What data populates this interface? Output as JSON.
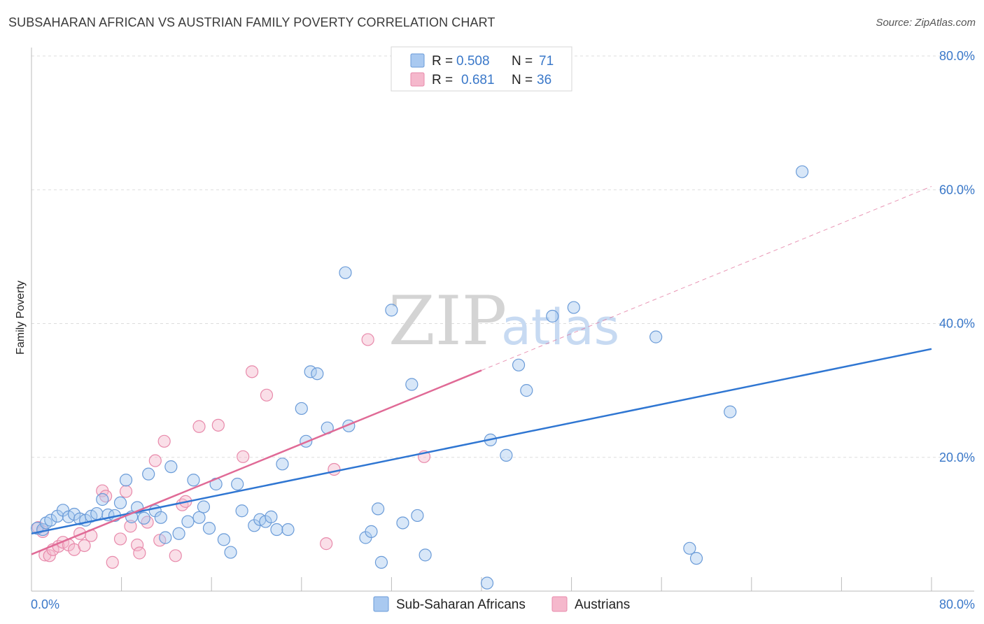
{
  "header": {
    "title": "SUBSAHARAN AFRICAN VS AUSTRIAN FAMILY POVERTY CORRELATION CHART",
    "source": "Source: ZipAtlas.com"
  },
  "watermark": {
    "zip": "ZIP",
    "atlas": "atlas"
  },
  "colors": {
    "blue": "#2f76d2",
    "blue_fill": "#a9c9f0",
    "blue_stroke": "#6a9bd8",
    "pink": "#e06a96",
    "pink_fill": "#f5b8cc",
    "pink_stroke": "#e88aab",
    "tick_label": "#3a78c9",
    "grid": "#dddddd"
  },
  "legend": {
    "entries": [
      {
        "r_label": "R =",
        "r_value": "0.508",
        "n_label": "N =",
        "n_value": "71"
      },
      {
        "r_label": "R =",
        "r_value": "0.681",
        "n_label": "N =",
        "n_value": "36"
      }
    ]
  },
  "chart_data": {
    "type": "scatter",
    "title": "SUBSAHARAN AFRICAN VS AUSTRIAN FAMILY POVERTY CORRELATION CHART",
    "xlabel": "",
    "ylabel": "Family Poverty",
    "xlim": [
      0,
      80
    ],
    "ylim": [
      0,
      80
    ],
    "x_tick_labels": [
      "0.0%",
      "80.0%"
    ],
    "y_ticks": [
      20,
      40,
      60,
      80
    ],
    "y_tick_labels": [
      "20.0%",
      "40.0%",
      "60.0%",
      "80.0%"
    ],
    "grid": true,
    "legend_position": "bottom",
    "series": [
      {
        "name": "Sub-Saharan Africans",
        "color": "#2f76d2",
        "points": [
          [
            0.5,
            9.4
          ],
          [
            1.0,
            9.2
          ],
          [
            1.3,
            10.2
          ],
          [
            1.7,
            10.6
          ],
          [
            2.3,
            11.2
          ],
          [
            2.8,
            12.1
          ],
          [
            3.3,
            11.1
          ],
          [
            3.8,
            11.5
          ],
          [
            4.3,
            10.8
          ],
          [
            4.8,
            10.6
          ],
          [
            5.3,
            11.2
          ],
          [
            5.8,
            11.6
          ],
          [
            6.3,
            13.7
          ],
          [
            6.8,
            11.4
          ],
          [
            7.4,
            11.3
          ],
          [
            7.9,
            13.2
          ],
          [
            8.4,
            16.6
          ],
          [
            8.9,
            11.1
          ],
          [
            9.4,
            12.5
          ],
          [
            10.0,
            10.9
          ],
          [
            10.4,
            17.5
          ],
          [
            11.0,
            12.0
          ],
          [
            11.5,
            11.0
          ],
          [
            11.9,
            8.0
          ],
          [
            12.4,
            18.6
          ],
          [
            13.1,
            8.6
          ],
          [
            13.9,
            10.4
          ],
          [
            14.4,
            16.6
          ],
          [
            14.9,
            11.0
          ],
          [
            15.3,
            12.6
          ],
          [
            15.8,
            9.4
          ],
          [
            16.4,
            16.0
          ],
          [
            17.1,
            7.7
          ],
          [
            17.7,
            5.8
          ],
          [
            18.3,
            16.0
          ],
          [
            18.7,
            12.0
          ],
          [
            19.8,
            9.8
          ],
          [
            20.3,
            10.7
          ],
          [
            20.8,
            10.4
          ],
          [
            21.3,
            11.1
          ],
          [
            21.8,
            9.2
          ],
          [
            22.3,
            19.0
          ],
          [
            22.8,
            9.2
          ],
          [
            24.0,
            27.3
          ],
          [
            24.4,
            22.4
          ],
          [
            24.8,
            32.8
          ],
          [
            25.4,
            32.5
          ],
          [
            26.3,
            24.4
          ],
          [
            27.9,
            47.6
          ],
          [
            28.2,
            24.7
          ],
          [
            29.7,
            8.0
          ],
          [
            30.2,
            8.9
          ],
          [
            30.8,
            12.3
          ],
          [
            31.1,
            4.3
          ],
          [
            33.0,
            10.2
          ],
          [
            33.8,
            30.9
          ],
          [
            34.3,
            11.3
          ],
          [
            35.0,
            5.4
          ],
          [
            40.5,
            1.2
          ],
          [
            40.8,
            22.6
          ],
          [
            42.2,
            20.3
          ],
          [
            43.3,
            33.8
          ],
          [
            46.3,
            41.1
          ],
          [
            48.2,
            42.4
          ],
          [
            55.5,
            38.0
          ],
          [
            62.1,
            26.8
          ],
          [
            68.5,
            62.7
          ],
          [
            58.5,
            6.4
          ],
          [
            59.1,
            4.9
          ],
          [
            32.0,
            42.0
          ],
          [
            44.0,
            30.0
          ]
        ],
        "trend": {
          "x0": 0.0,
          "y0": 8.6,
          "x1": 80.0,
          "y1": 36.2
        }
      },
      {
        "name": "Austrians",
        "color": "#e06a96",
        "points": [
          [
            0.6,
            9.5
          ],
          [
            1.2,
            5.4
          ],
          [
            1.6,
            5.3
          ],
          [
            1.9,
            6.2
          ],
          [
            2.4,
            6.7
          ],
          [
            2.8,
            7.3
          ],
          [
            3.3,
            6.9
          ],
          [
            3.8,
            6.2
          ],
          [
            4.3,
            8.6
          ],
          [
            4.7,
            6.8
          ],
          [
            5.3,
            8.3
          ],
          [
            6.3,
            15.0
          ],
          [
            6.6,
            14.2
          ],
          [
            7.2,
            4.3
          ],
          [
            7.9,
            7.8
          ],
          [
            8.4,
            14.9
          ],
          [
            8.8,
            9.7
          ],
          [
            9.4,
            6.9
          ],
          [
            9.6,
            5.7
          ],
          [
            10.3,
            10.3
          ],
          [
            11.0,
            19.5
          ],
          [
            11.4,
            7.6
          ],
          [
            11.8,
            22.4
          ],
          [
            12.8,
            5.3
          ],
          [
            13.4,
            12.9
          ],
          [
            13.7,
            13.4
          ],
          [
            14.9,
            24.6
          ],
          [
            16.6,
            24.8
          ],
          [
            18.8,
            20.1
          ],
          [
            19.6,
            32.8
          ],
          [
            20.9,
            29.3
          ],
          [
            26.2,
            7.1
          ],
          [
            26.9,
            18.2
          ],
          [
            29.9,
            37.6
          ],
          [
            34.9,
            20.1
          ],
          [
            1.0,
            8.9
          ]
        ],
        "trend": {
          "x0": 0.0,
          "y0": 5.5,
          "x1": 40.0,
          "y1": 33.0,
          "dashed_to": {
            "x": 80.0,
            "y": 60.5
          }
        }
      }
    ]
  }
}
